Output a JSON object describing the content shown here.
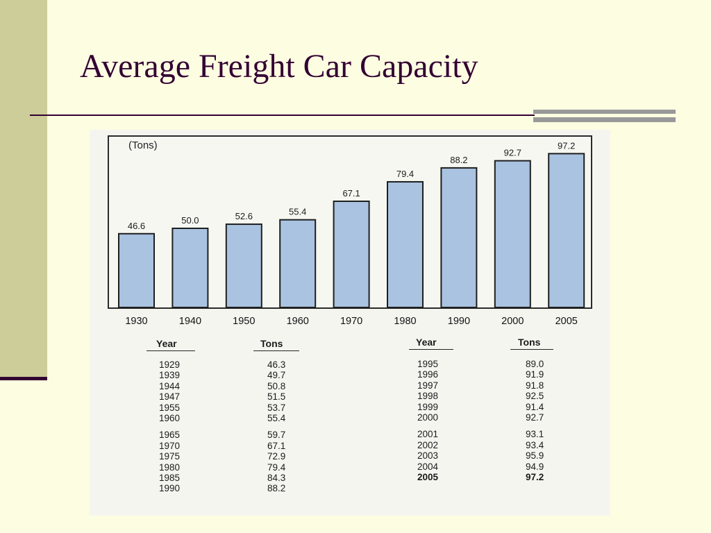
{
  "slide": {
    "title": "Average Freight Car Capacity",
    "colors": {
      "title": "#330033",
      "background": "#fdfde1",
      "band": "#cdcd99",
      "bar": "#a9c3e0"
    }
  },
  "chart_data": {
    "type": "bar",
    "unit_label": "(Tons)",
    "categories": [
      "1930",
      "1940",
      "1950",
      "1960",
      "1970",
      "1980",
      "1990",
      "2000",
      "2005"
    ],
    "values": [
      46.6,
      50.0,
      52.6,
      55.4,
      67.1,
      79.4,
      88.2,
      92.7,
      97.2
    ],
    "value_labels": [
      "46.6",
      "50.0",
      "52.6",
      "55.4",
      "67.1",
      "79.4",
      "88.2",
      "92.7",
      "97.2"
    ],
    "ylim": [
      0,
      100
    ],
    "grid": false
  },
  "table": {
    "headers": {
      "year": "Year",
      "tons": "Tons"
    },
    "left": {
      "years": [
        "1929",
        "1939",
        "1944",
        "1947",
        "1955",
        "1960",
        "1965",
        "1970",
        "1975",
        "1980",
        "1985",
        "1990"
      ],
      "tons": [
        "46.3",
        "49.7",
        "50.8",
        "51.5",
        "53.7",
        "55.4",
        "59.7",
        "67.1",
        "72.9",
        "79.4",
        "84.3",
        "88.2"
      ]
    },
    "right": {
      "years": [
        "1995",
        "1996",
        "1997",
        "1998",
        "1999",
        "2000",
        "2001",
        "2002",
        "2003",
        "2004",
        "2005"
      ],
      "tons": [
        "89.0",
        "91.9",
        "91.8",
        "92.5",
        "91.4",
        "92.7",
        "93.1",
        "93.4",
        "95.9",
        "94.9",
        "97.2"
      ]
    }
  }
}
